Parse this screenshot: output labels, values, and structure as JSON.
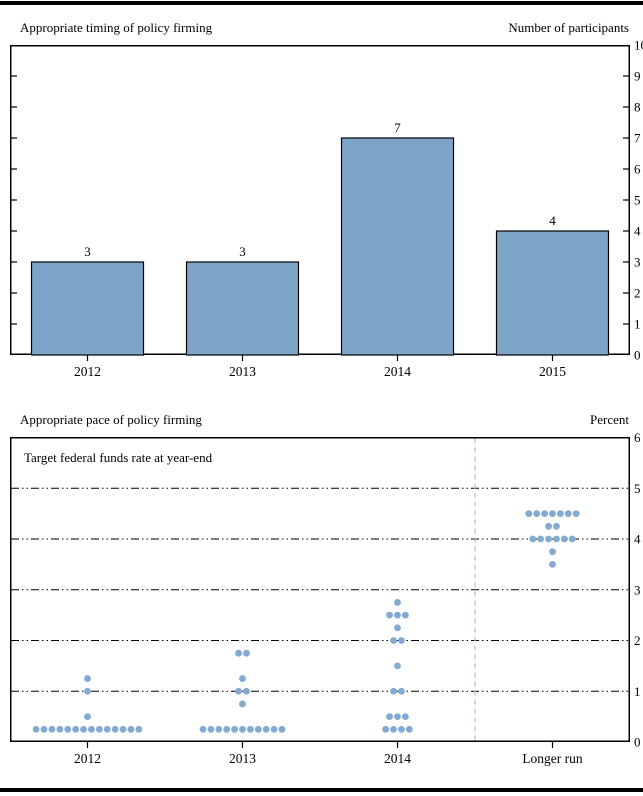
{
  "chart_data": [
    {
      "type": "bar",
      "title": "Appropriate timing of policy firming",
      "unit_label": "Number of participants",
      "categories": [
        "2012",
        "2013",
        "2014",
        "2015"
      ],
      "values": [
        3,
        3,
        7,
        4
      ],
      "ylim": [
        0,
        10
      ],
      "ytick_step": 1,
      "ytick_side": "right",
      "grid": false,
      "bar_color": "#7CA5C9",
      "bar_edge_color": "#000000"
    },
    {
      "type": "scatter",
      "title": "Appropriate pace of policy firming",
      "unit_label": "Percent",
      "annotation": "Target federal funds rate at year-end",
      "categories": [
        "2012",
        "2013",
        "2014",
        "Longer run"
      ],
      "ylim": [
        0,
        6
      ],
      "ytick_step": 1,
      "ytick_side": "right",
      "gridlines": [
        1,
        2,
        3,
        4,
        5
      ],
      "grid_style": "dash-dot-dot",
      "dot_color": "#82AAD2",
      "separator_color": "#A9C9E4",
      "separator_before_category": "Longer run",
      "series": [
        {
          "category": "2012",
          "points": [
            {
              "rate": 1.25,
              "count": 1
            },
            {
              "rate": 1.0,
              "count": 1
            },
            {
              "rate": 0.5,
              "count": 1
            },
            {
              "rate": 0.25,
              "count": 14
            }
          ]
        },
        {
          "category": "2013",
          "points": [
            {
              "rate": 1.75,
              "count": 2
            },
            {
              "rate": 1.25,
              "count": 1
            },
            {
              "rate": 1.0,
              "count": 2
            },
            {
              "rate": 0.75,
              "count": 1
            },
            {
              "rate": 0.25,
              "count": 11
            }
          ]
        },
        {
          "category": "2014",
          "points": [
            {
              "rate": 2.75,
              "count": 1
            },
            {
              "rate": 2.5,
              "count": 3
            },
            {
              "rate": 2.25,
              "count": 1
            },
            {
              "rate": 2.0,
              "count": 2
            },
            {
              "rate": 1.5,
              "count": 1
            },
            {
              "rate": 1.0,
              "count": 2
            },
            {
              "rate": 0.5,
              "count": 3
            },
            {
              "rate": 0.25,
              "count": 4
            }
          ]
        },
        {
          "category": "Longer run",
          "points": [
            {
              "rate": 4.5,
              "count": 7
            },
            {
              "rate": 4.25,
              "count": 2
            },
            {
              "rate": 4.0,
              "count": 6
            },
            {
              "rate": 3.75,
              "count": 1
            },
            {
              "rate": 3.5,
              "count": 1
            }
          ]
        }
      ]
    }
  ]
}
